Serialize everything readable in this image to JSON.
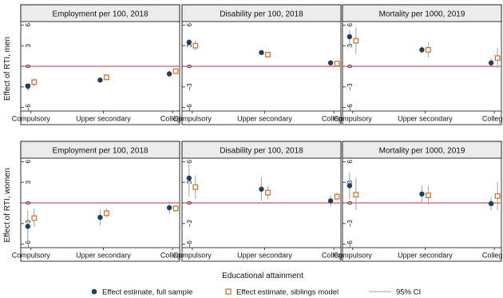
{
  "chart_data": {
    "type": "scatter",
    "xlabel": "Educational attainment",
    "categories": [
      "Compulsory",
      "Upper secondary",
      "College"
    ],
    "ylim": [
      -6.5,
      6.5
    ],
    "yticks": [
      6,
      3,
      0,
      -3,
      -6
    ],
    "ytick_labels": [
      "6",
      "3",
      "0",
      "−3",
      "−6"
    ],
    "colors": {
      "full": "#1f3f5f",
      "siblings": "#d8742f",
      "ci": "#a0a0a0",
      "zero_line": "#b3304a"
    },
    "legend": {
      "placement": "bottom",
      "entries": [
        {
          "label": "Effect estimate, full sample",
          "marker": "circle"
        },
        {
          "label": "Effect estimate, siblings model",
          "marker": "square"
        },
        {
          "label": "95% CI",
          "marker": "line"
        }
      ]
    },
    "row_labels": [
      "Effect of RTI, men",
      "Effect of RTI, women"
    ],
    "col_titles": [
      "Employment per 100, 2018",
      "Disability per 100, 2018",
      "Mortality per 1000, 2019"
    ],
    "panels": [
      {
        "row": 0,
        "col": 0,
        "full": {
          "values": [
            -2.9,
            -2.0,
            -1.1
          ],
          "ci_low": [
            -3.3,
            -2.3,
            -1.6
          ],
          "ci_high": [
            -2.5,
            -1.7,
            -0.6
          ]
        },
        "siblings": {
          "values": [
            -2.3,
            -1.6,
            -0.7
          ],
          "ci_low": [
            -2.9,
            -1.9,
            -1.1
          ],
          "ci_high": [
            -1.7,
            -1.3,
            -0.3
          ]
        }
      },
      {
        "row": 0,
        "col": 1,
        "full": {
          "values": [
            3.5,
            2.0,
            0.5
          ],
          "ci_low": [
            3.1,
            1.7,
            0.3
          ],
          "ci_high": [
            3.9,
            2.3,
            0.7
          ]
        },
        "siblings": {
          "values": [
            3.0,
            1.7,
            0.4
          ],
          "ci_low": [
            2.3,
            1.3,
            0.1
          ],
          "ci_high": [
            3.7,
            2.1,
            0.7
          ]
        }
      },
      {
        "row": 0,
        "col": 2,
        "full": {
          "values": [
            4.3,
            2.4,
            0.5
          ],
          "ci_low": [
            3.2,
            1.9,
            -0.2
          ],
          "ci_high": [
            5.3,
            2.9,
            1.2
          ]
        },
        "siblings": {
          "values": [
            3.7,
            2.4,
            1.2
          ],
          "ci_low": [
            1.8,
            1.3,
            -0.3
          ],
          "ci_high": [
            5.6,
            3.5,
            2.7
          ]
        }
      },
      {
        "row": 1,
        "col": 0,
        "full": {
          "values": [
            -3.4,
            -2.1,
            -0.7
          ],
          "ci_low": [
            -5.8,
            -3.3,
            -1.6
          ],
          "ci_high": [
            -1.1,
            -0.9,
            0.2
          ]
        },
        "siblings": {
          "values": [
            -2.2,
            -1.5,
            -0.8
          ],
          "ci_low": [
            -3.5,
            -2.1,
            -1.3
          ],
          "ci_high": [
            -0.8,
            -0.8,
            -0.3
          ]
        }
      },
      {
        "row": 1,
        "col": 1,
        "full": {
          "values": [
            3.6,
            2.0,
            0.3
          ],
          "ci_low": [
            0.9,
            0.3,
            -0.5
          ],
          "ci_high": [
            6.3,
            3.7,
            1.1
          ]
        },
        "siblings": {
          "values": [
            2.3,
            1.5,
            0.9
          ],
          "ci_low": [
            0.6,
            0.5,
            0.3
          ],
          "ci_high": [
            4.0,
            2.5,
            1.5
          ]
        }
      },
      {
        "row": 1,
        "col": 2,
        "full": {
          "values": [
            2.5,
            1.3,
            -0.1
          ],
          "ci_low": [
            0.6,
            0.1,
            -1.1
          ],
          "ci_high": [
            4.4,
            2.5,
            0.9
          ]
        },
        "siblings": {
          "values": [
            1.2,
            1.1,
            1.0
          ],
          "ci_low": [
            -1.0,
            -0.3,
            -1.0
          ],
          "ci_high": [
            3.6,
            2.5,
            3.0
          ]
        }
      }
    ]
  }
}
